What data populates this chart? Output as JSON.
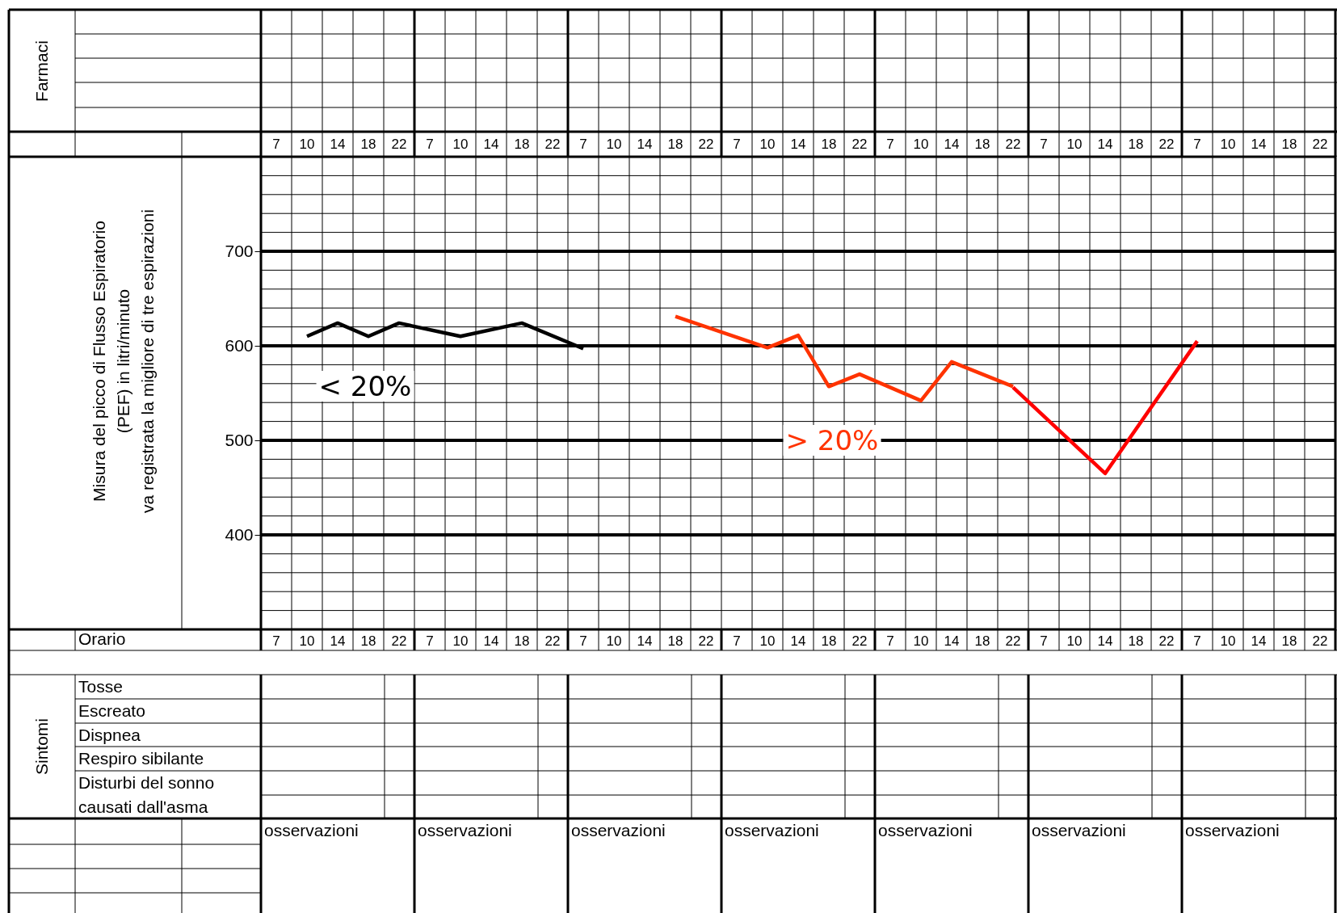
{
  "chart_data": {
    "type": "line",
    "ylabel": "Misura del picco di Flusso Espiratorio\n(PEF) in litri/minuto\nva registrata la migliore di tre espirazioni",
    "categories": [
      "7",
      "10",
      "14",
      "18",
      "22",
      "7",
      "10",
      "14",
      "18",
      "22",
      "7",
      "10",
      "14",
      "18",
      "22",
      "7",
      "10",
      "14",
      "18",
      "22",
      "7",
      "10",
      "14",
      "18",
      "22",
      "7",
      "10",
      "14",
      "18",
      "22",
      "7",
      "10",
      "14",
      "18",
      "22"
    ],
    "ylim": [
      300,
      800
    ],
    "yticks": [
      {
        "value": 320,
        "label": null
      },
      {
        "value": 340,
        "label": null
      },
      {
        "value": 360,
        "label": null
      },
      {
        "value": 380,
        "label": null
      },
      400,
      {
        "value": 420,
        "label": null
      },
      {
        "value": 440,
        "label": null
      },
      {
        "value": 460,
        "label": null
      },
      {
        "value": 480,
        "label": null
      },
      500,
      {
        "value": 520,
        "label": null
      },
      {
        "value": 540,
        "label": null
      },
      {
        "value": 560,
        "label": null
      },
      {
        "value": 580,
        "label": null
      },
      600,
      {
        "value": 620,
        "label": null
      },
      {
        "value": 640,
        "label": null
      },
      {
        "value": 660,
        "label": null
      },
      {
        "value": 680,
        "label": null
      },
      700,
      {
        "value": 720,
        "label": null
      },
      {
        "value": 740,
        "label": null
      },
      {
        "value": 760,
        "label": null
      },
      {
        "value": 780,
        "label": null
      }
    ],
    "grid": true,
    "line_style": "solid",
    "series": [
      {
        "color": "#000000",
        "values": [
          null,
          610,
          624,
          610,
          624,
          null,
          610,
          null,
          624,
          null,
          597,
          null,
          null,
          null,
          null,
          null,
          null,
          null,
          null,
          null,
          null,
          null,
          null,
          null,
          null,
          null,
          null,
          null,
          null,
          null,
          null,
          null,
          null,
          null,
          null
        ]
      },
      {
        "color": "#ff3300",
        "values": [
          null,
          null,
          null,
          null,
          null,
          null,
          null,
          null,
          null,
          null,
          null,
          null,
          null,
          631,
          null,
          null,
          598,
          611,
          557,
          570,
          null,
          542,
          583,
          null,
          557,
          null,
          null,
          null,
          null,
          null,
          null,
          null,
          null,
          null,
          null
        ]
      },
      {
        "color": "#ff0000",
        "values": [
          null,
          null,
          null,
          null,
          null,
          null,
          null,
          null,
          null,
          null,
          null,
          null,
          null,
          null,
          null,
          null,
          null,
          null,
          null,
          null,
          null,
          null,
          null,
          null,
          556,
          null,
          null,
          465,
          null,
          null,
          605,
          null,
          null,
          null,
          null
        ]
      }
    ],
    "annotations": [
      "< 20%",
      "> 20%",
      "Orario",
      "Farmaci",
      "Sintomi",
      "Tosse",
      "Escreato",
      "Dispnea",
      "Respiro sibilante",
      "Disturbi del sonno\ncausati dall'asma",
      "osservazioni",
      "osservazioni",
      "osservazioni",
      "osservazioni",
      "osservazioni",
      "osservazioni",
      "osservazioni"
    ]
  }
}
